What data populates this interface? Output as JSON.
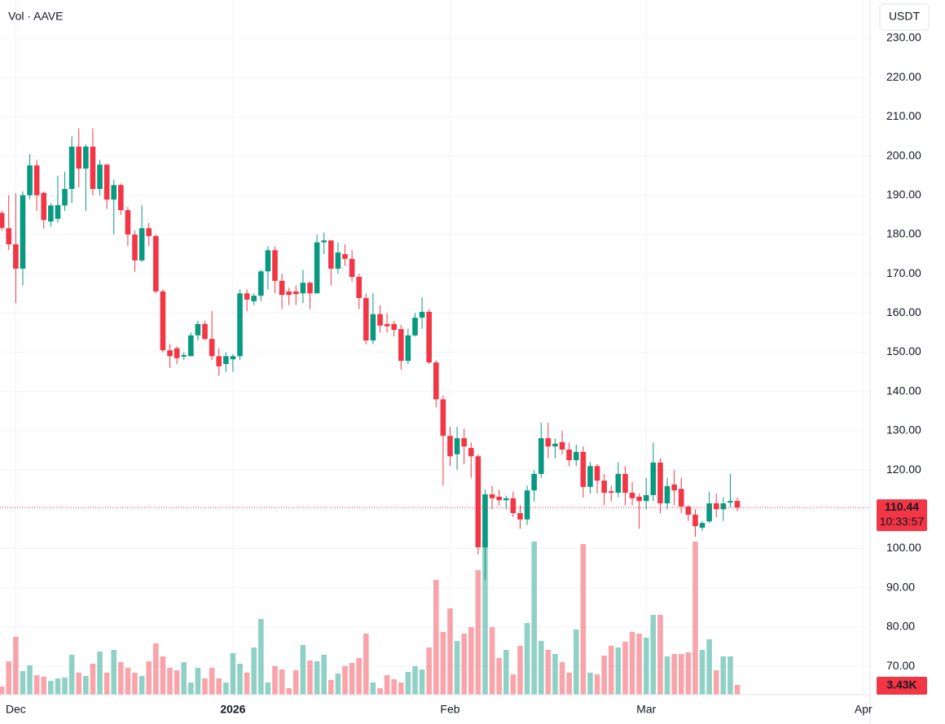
{
  "chart_data": {
    "type": "candlestick",
    "title": "Vol · AAVE",
    "currency": "USDT",
    "up_color": "#089981",
    "down_color": "#f23645",
    "grid": true,
    "xlim": [
      -0.25,
      123.95
    ],
    "xticks": [
      {
        "value": 2,
        "label": "Dec"
      },
      {
        "value": 33,
        "label": "2026"
      },
      {
        "value": 64,
        "label": "Feb"
      },
      {
        "value": 92,
        "label": "Mar"
      },
      {
        "value": 123,
        "label": "Apr"
      }
    ],
    "ylim": [
      62.75,
      239.75
    ],
    "yticks": [
      {
        "value": 70,
        "label": "70.00"
      },
      {
        "value": 80,
        "label": "80.00"
      },
      {
        "value": 90,
        "label": "90.00"
      },
      {
        "value": 100,
        "label": "100.00"
      },
      {
        "value": 110,
        "label": "110.00"
      },
      {
        "value": 120,
        "label": "120.00"
      },
      {
        "value": 130,
        "label": "130.00"
      },
      {
        "value": 140,
        "label": "140.00"
      },
      {
        "value": 150,
        "label": "150.00"
      },
      {
        "value": 160,
        "label": "160.00"
      },
      {
        "value": 170,
        "label": "170.00"
      },
      {
        "value": 180,
        "label": "180.00"
      },
      {
        "value": 190,
        "label": "190.00"
      },
      {
        "value": 200,
        "label": "200.00"
      },
      {
        "value": 210,
        "label": "210.00"
      },
      {
        "value": 220,
        "label": "220.00"
      },
      {
        "value": 230,
        "label": "230.00"
      }
    ],
    "open": [
      185.5,
      181.6,
      177.5,
      171.3,
      190,
      197.6,
      190.6,
      183.3,
      184,
      187.4,
      191.6,
      202.4,
      196.8,
      202.4,
      191.6,
      197.8,
      188.9,
      192.6,
      186.2,
      180,
      173.4,
      181.6,
      179.6,
      165.5,
      150.5,
      151,
      148.9,
      149,
      154.3,
      157.2,
      153.4,
      149,
      147,
      148.2,
      149,
      165,
      163,
      164.4,
      170.6,
      176,
      168.2,
      165.5,
      165.5,
      165,
      167.7,
      165,
      178,
      178.5,
      171.3,
      175,
      173.8,
      169.2,
      163.8,
      153,
      159.7,
      157.2,
      157.2,
      155.9,
      147.8,
      154.3,
      158.8,
      160.3,
      147.4,
      138,
      128.7,
      124,
      128.1,
      125.6,
      123.5,
      100.3,
      113.8,
      113.2,
      112.3,
      112.8,
      109,
      107.4,
      114.8,
      119,
      128.1,
      126,
      127.1,
      125.2,
      122.5,
      124.6,
      115.7,
      121,
      117.3,
      114.6,
      114.2,
      119,
      114.2,
      113.2,
      112.1,
      113.6,
      121.9,
      111.5,
      116.3,
      115.2,
      110.7,
      108.6,
      105.3,
      106.9,
      111.5,
      110,
      111.7,
      112.1
    ],
    "high": [
      186,
      190,
      190.5,
      191,
      200.5,
      199,
      191,
      188,
      195,
      196,
      205,
      207,
      203,
      207,
      199,
      198,
      194,
      193,
      187,
      181,
      187.5,
      183,
      180,
      166,
      152,
      151.5,
      150,
      155,
      158,
      158,
      160.5,
      151,
      150,
      149.5,
      166,
      166,
      165,
      171,
      177,
      177,
      170,
      166.5,
      167,
      171,
      168,
      180,
      180.5,
      178.5,
      178,
      177.5,
      176,
      170,
      165,
      165,
      162,
      160,
      158,
      157,
      156,
      160,
      164,
      161,
      148,
      139,
      131,
      131,
      130.5,
      127,
      124,
      115,
      116,
      115,
      113.5,
      114.5,
      111,
      116,
      120,
      132,
      132,
      128,
      130,
      127,
      126.5,
      126,
      122,
      121.5,
      119,
      116,
      122,
      121,
      117,
      114,
      118,
      127,
      123,
      118,
      120,
      118,
      111,
      110,
      107,
      114.5,
      114,
      113,
      119,
      113
    ],
    "low": [
      181,
      176,
      162.5,
      167,
      189,
      186,
      181.5,
      182,
      183,
      186,
      188,
      192,
      186,
      190,
      190,
      186.5,
      180,
      185,
      177,
      170.5,
      173,
      177,
      165,
      150,
      146,
      147,
      148,
      149,
      153,
      153,
      148,
      144,
      145,
      145,
      148,
      160.5,
      162,
      163,
      166,
      165,
      161,
      162,
      162,
      162.5,
      161,
      165,
      175,
      167,
      170,
      172,
      168,
      161,
      152,
      152,
      155,
      155,
      154,
      145.5,
      147,
      154,
      156,
      147,
      136,
      116,
      121,
      120,
      121.5,
      118,
      98.5,
      92,
      110,
      111,
      110,
      108,
      105,
      106,
      112,
      118,
      123,
      123,
      124,
      121,
      121,
      113,
      114,
      114,
      111,
      112,
      113,
      111,
      111,
      105,
      110,
      112,
      109,
      110,
      111,
      109,
      107,
      103,
      104.5,
      106.5,
      108,
      107,
      110.5,
      109.5
    ],
    "close": [
      181.7,
      177.5,
      171.3,
      190,
      197.6,
      190,
      183.7,
      187.4,
      187.5,
      191.6,
      202.4,
      196.8,
      202.4,
      191.6,
      197.8,
      188.9,
      192.6,
      186.2,
      180,
      173.4,
      181.6,
      179.6,
      165.5,
      150.5,
      149,
      148.5,
      149.3,
      154.3,
      157.2,
      153.4,
      149,
      146.4,
      149,
      149,
      165,
      163.4,
      164.4,
      170.6,
      176,
      168.2,
      164.6,
      164.6,
      164.8,
      167.7,
      165,
      178,
      178.5,
      171.3,
      175.4,
      173.8,
      169.2,
      163.8,
      153,
      159.7,
      156.8,
      156.6,
      155.7,
      147.8,
      154.3,
      158.8,
      160.3,
      147.4,
      138,
      128.7,
      123.5,
      128.1,
      126,
      123.5,
      100.3,
      113.8,
      112.8,
      112.3,
      112.8,
      109,
      107.4,
      114.8,
      119,
      128.1,
      126,
      126.7,
      125.2,
      122.5,
      124.6,
      115.7,
      121,
      117.3,
      114.2,
      114.2,
      119,
      114.2,
      112.8,
      112.1,
      113.6,
      121.9,
      111.5,
      115.9,
      114.8,
      110.7,
      108.6,
      105.7,
      106.5,
      111.5,
      110,
      111.5,
      112.1,
      110.44
    ],
    "last_close_label": "110.44",
    "countdown": "10:33:57",
    "volume": [
      2860,
      11730,
      20310,
      8290,
      10300,
      6860,
      6290,
      4860,
      5720,
      6010,
      14010,
      7720,
      6580,
      10870,
      15160,
      7720,
      15730,
      11440,
      9440,
      7720,
      6580,
      11730,
      18020,
      13440,
      9440,
      8580,
      11440,
      4290,
      9440,
      5720,
      9440,
      5720,
      4290,
      14590,
      10870,
      7720,
      16590,
      26600,
      4290,
      10010,
      8870,
      2290,
      8580,
      17450,
      12010,
      11730,
      14010,
      5150,
      7440,
      10010,
      11150,
      12870,
      21450,
      4290,
      2290,
      6860,
      5430,
      4290,
      8010,
      10010,
      8870,
      16590,
      40330,
      22020,
      30320,
      18880,
      21450,
      23740,
      43760,
      53770,
      23740,
      12870,
      15730,
      7150,
      17160,
      25170,
      53770,
      18880,
      15730,
      14300,
      11440,
      7720,
      22880,
      52910,
      7720,
      7150,
      13730,
      17160,
      16590,
      18590,
      22020,
      21450,
      20020,
      28030,
      28030,
      13440,
      14300,
      14300,
      14870,
      53770,
      15730,
      19450,
      8580,
      13440,
      13440,
      3430
    ],
    "last_volume_label": "3.43K"
  }
}
